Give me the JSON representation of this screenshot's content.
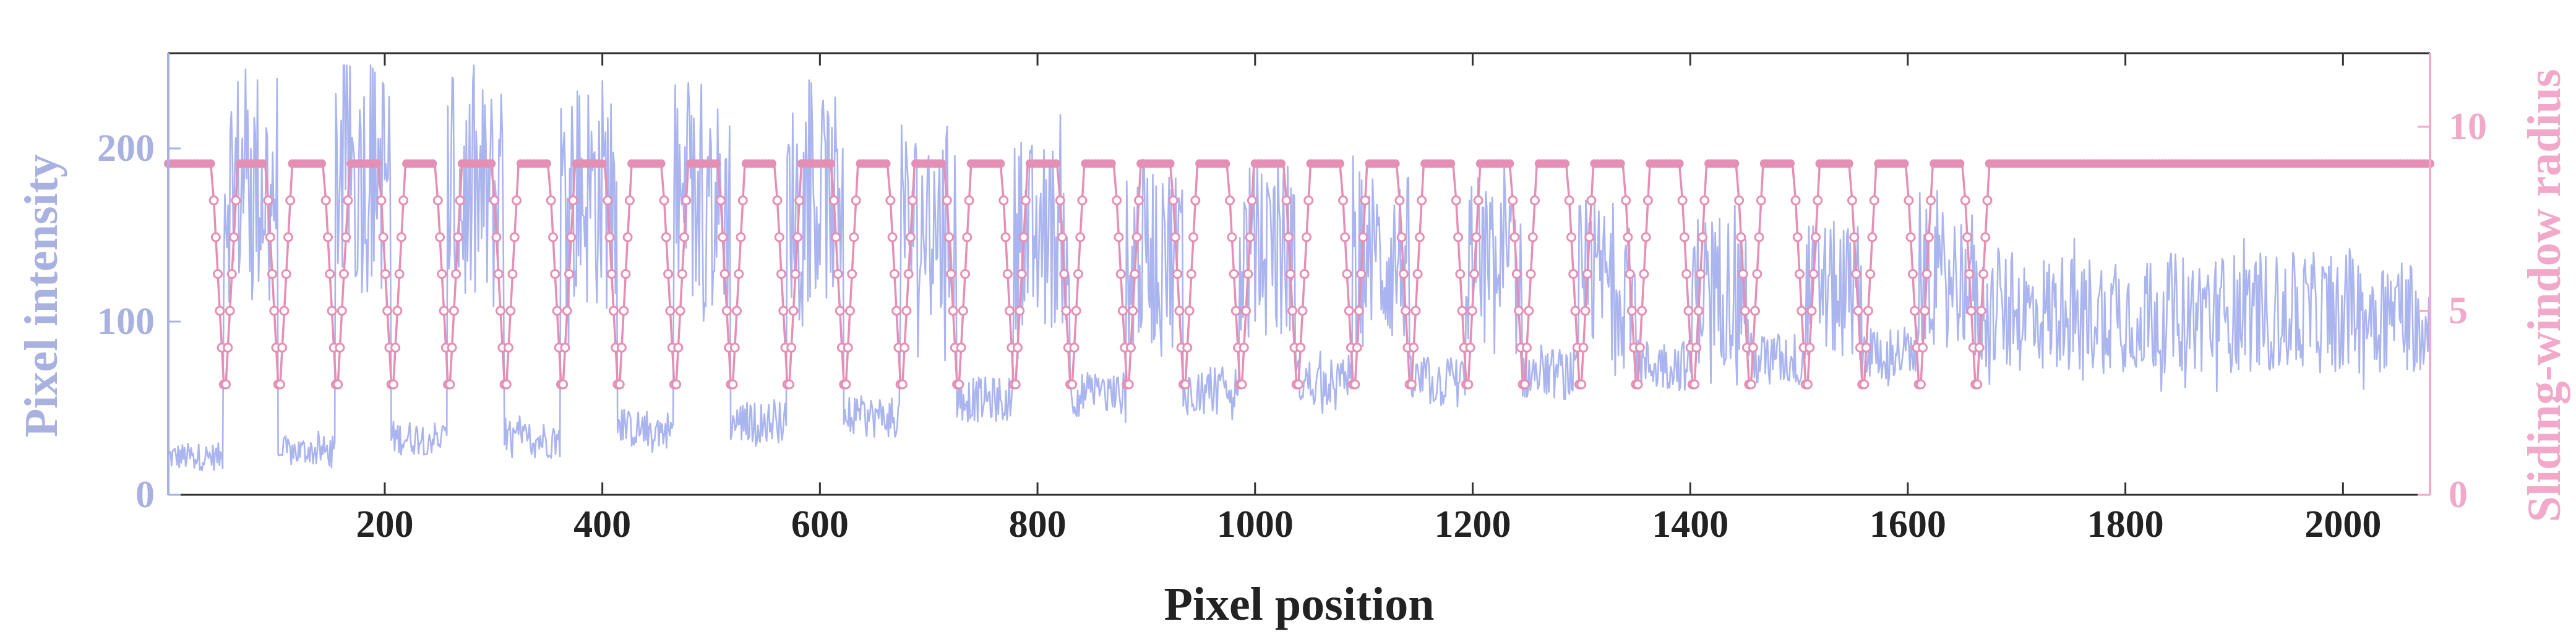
{
  "chart_data": {
    "type": "line",
    "title": "",
    "xlabel": "Pixel position",
    "ylabel_left": "Pixel intensity",
    "ylabel_right": "Sliding-window radius",
    "xlim": [
      1,
      2080
    ],
    "ylim_left": [
      0,
      255
    ],
    "ylim_right": [
      0,
      12
    ],
    "x_ticks": [
      200,
      400,
      600,
      800,
      1000,
      1200,
      1400,
      1600,
      1800,
      2000
    ],
    "x_tick_labels": [
      "200",
      "400",
      "600",
      "800",
      "1000",
      "1200",
      "1400",
      "1600",
      "1800",
      "2000"
    ],
    "y_left_ticks": [
      0,
      100,
      200
    ],
    "y_left_tick_labels": [
      "0",
      "100",
      "200"
    ],
    "y_right_ticks": [
      0,
      5,
      10
    ],
    "y_right_tick_labels": [
      "0",
      "5",
      "10"
    ],
    "grid": false,
    "legend": "none",
    "colors": {
      "intensity": "#aab4ee",
      "radius": "#e58fb5",
      "left_axis": "#a9b1e0",
      "right_axis": "#f2a8c8",
      "frame": "#333333"
    },
    "series": [
      {
        "name": "Pixel intensity",
        "axis": "left",
        "style": "line",
        "segments": [
          {
            "x0": 1,
            "x1": 52,
            "mean": 22,
            "noise": 8
          },
          {
            "x0": 52,
            "x1": 102,
            "mean": 180,
            "noise": 70
          },
          {
            "x0": 102,
            "x1": 155,
            "mean": 25,
            "noise": 9
          },
          {
            "x0": 155,
            "x1": 206,
            "mean": 185,
            "noise": 70
          },
          {
            "x0": 206,
            "x1": 258,
            "mean": 33,
            "noise": 10
          },
          {
            "x0": 258,
            "x1": 310,
            "mean": 170,
            "noise": 70
          },
          {
            "x0": 310,
            "x1": 362,
            "mean": 32,
            "noise": 11
          },
          {
            "x0": 362,
            "x1": 414,
            "mean": 175,
            "noise": 70
          },
          {
            "x0": 414,
            "x1": 466,
            "mean": 38,
            "noise": 11
          },
          {
            "x0": 466,
            "x1": 518,
            "mean": 165,
            "noise": 65
          },
          {
            "x0": 518,
            "x1": 570,
            "mean": 42,
            "noise": 12
          },
          {
            "x0": 570,
            "x1": 622,
            "mean": 170,
            "noise": 60
          },
          {
            "x0": 622,
            "x1": 674,
            "mean": 45,
            "noise": 12
          },
          {
            "x0": 674,
            "x1": 726,
            "mean": 155,
            "noise": 60
          },
          {
            "x0": 726,
            "x1": 778,
            "mean": 55,
            "noise": 13
          },
          {
            "x0": 778,
            "x1": 830,
            "mean": 150,
            "noise": 55
          },
          {
            "x0": 830,
            "x1": 882,
            "mean": 58,
            "noise": 13
          },
          {
            "x0": 882,
            "x1": 934,
            "mean": 140,
            "noise": 55
          },
          {
            "x0": 934,
            "x1": 986,
            "mean": 60,
            "noise": 14
          },
          {
            "x0": 986,
            "x1": 1038,
            "mean": 140,
            "noise": 55
          },
          {
            "x0": 1038,
            "x1": 1090,
            "mean": 65,
            "noise": 14
          },
          {
            "x0": 1090,
            "x1": 1142,
            "mean": 135,
            "noise": 50
          },
          {
            "x0": 1142,
            "x1": 1194,
            "mean": 65,
            "noise": 15
          },
          {
            "x0": 1194,
            "x1": 1246,
            "mean": 130,
            "noise": 50
          },
          {
            "x0": 1246,
            "x1": 1298,
            "mean": 70,
            "noise": 15
          },
          {
            "x0": 1298,
            "x1": 1350,
            "mean": 125,
            "noise": 45
          },
          {
            "x0": 1350,
            "x1": 1402,
            "mean": 75,
            "noise": 15
          },
          {
            "x0": 1402,
            "x1": 1454,
            "mean": 120,
            "noise": 45
          },
          {
            "x0": 1454,
            "x1": 1506,
            "mean": 78,
            "noise": 16
          },
          {
            "x0": 1506,
            "x1": 1558,
            "mean": 118,
            "noise": 40
          },
          {
            "x0": 1558,
            "x1": 1610,
            "mean": 82,
            "noise": 16
          },
          {
            "x0": 1610,
            "x1": 1662,
            "mean": 125,
            "noise": 40
          },
          {
            "x0": 1662,
            "x1": 2080,
            "mean": 105,
            "noise": 35
          }
        ]
      },
      {
        "name": "Sliding-window radius",
        "axis": "right",
        "style": "line-markers",
        "baseline": 9,
        "dip_profile": [
          8,
          7,
          6,
          5,
          4,
          3,
          3,
          4,
          5,
          6,
          7,
          8
        ],
        "dips": [
          {
            "x0": 41,
            "x1": 65
          },
          {
            "x0": 91,
            "x1": 115
          },
          {
            "x0": 144,
            "x1": 168
          },
          {
            "x0": 195,
            "x1": 219
          },
          {
            "x0": 247,
            "x1": 271
          },
          {
            "x0": 299,
            "x1": 323
          },
          {
            "x0": 351,
            "x1": 375
          },
          {
            "x0": 403,
            "x1": 427
          },
          {
            "x0": 455,
            "x1": 479
          },
          {
            "x0": 507,
            "x1": 531
          },
          {
            "x0": 559,
            "x1": 583
          },
          {
            "x0": 611,
            "x1": 635
          },
          {
            "x0": 663,
            "x1": 687
          },
          {
            "x0": 715,
            "x1": 739
          },
          {
            "x0": 767,
            "x1": 791
          },
          {
            "x0": 819,
            "x1": 843
          },
          {
            "x0": 871,
            "x1": 895
          },
          {
            "x0": 923,
            "x1": 947
          },
          {
            "x0": 975,
            "x1": 999
          },
          {
            "x0": 1027,
            "x1": 1051
          },
          {
            "x0": 1079,
            "x1": 1103
          },
          {
            "x0": 1131,
            "x1": 1155
          },
          {
            "x0": 1183,
            "x1": 1207
          },
          {
            "x0": 1235,
            "x1": 1259
          },
          {
            "x0": 1287,
            "x1": 1311
          },
          {
            "x0": 1339,
            "x1": 1363
          },
          {
            "x0": 1391,
            "x1": 1415
          },
          {
            "x0": 1443,
            "x1": 1467
          },
          {
            "x0": 1495,
            "x1": 1519
          },
          {
            "x0": 1547,
            "x1": 1571
          },
          {
            "x0": 1599,
            "x1": 1623
          },
          {
            "x0": 1651,
            "x1": 1675
          }
        ],
        "plateau_end": 2080
      }
    ]
  }
}
